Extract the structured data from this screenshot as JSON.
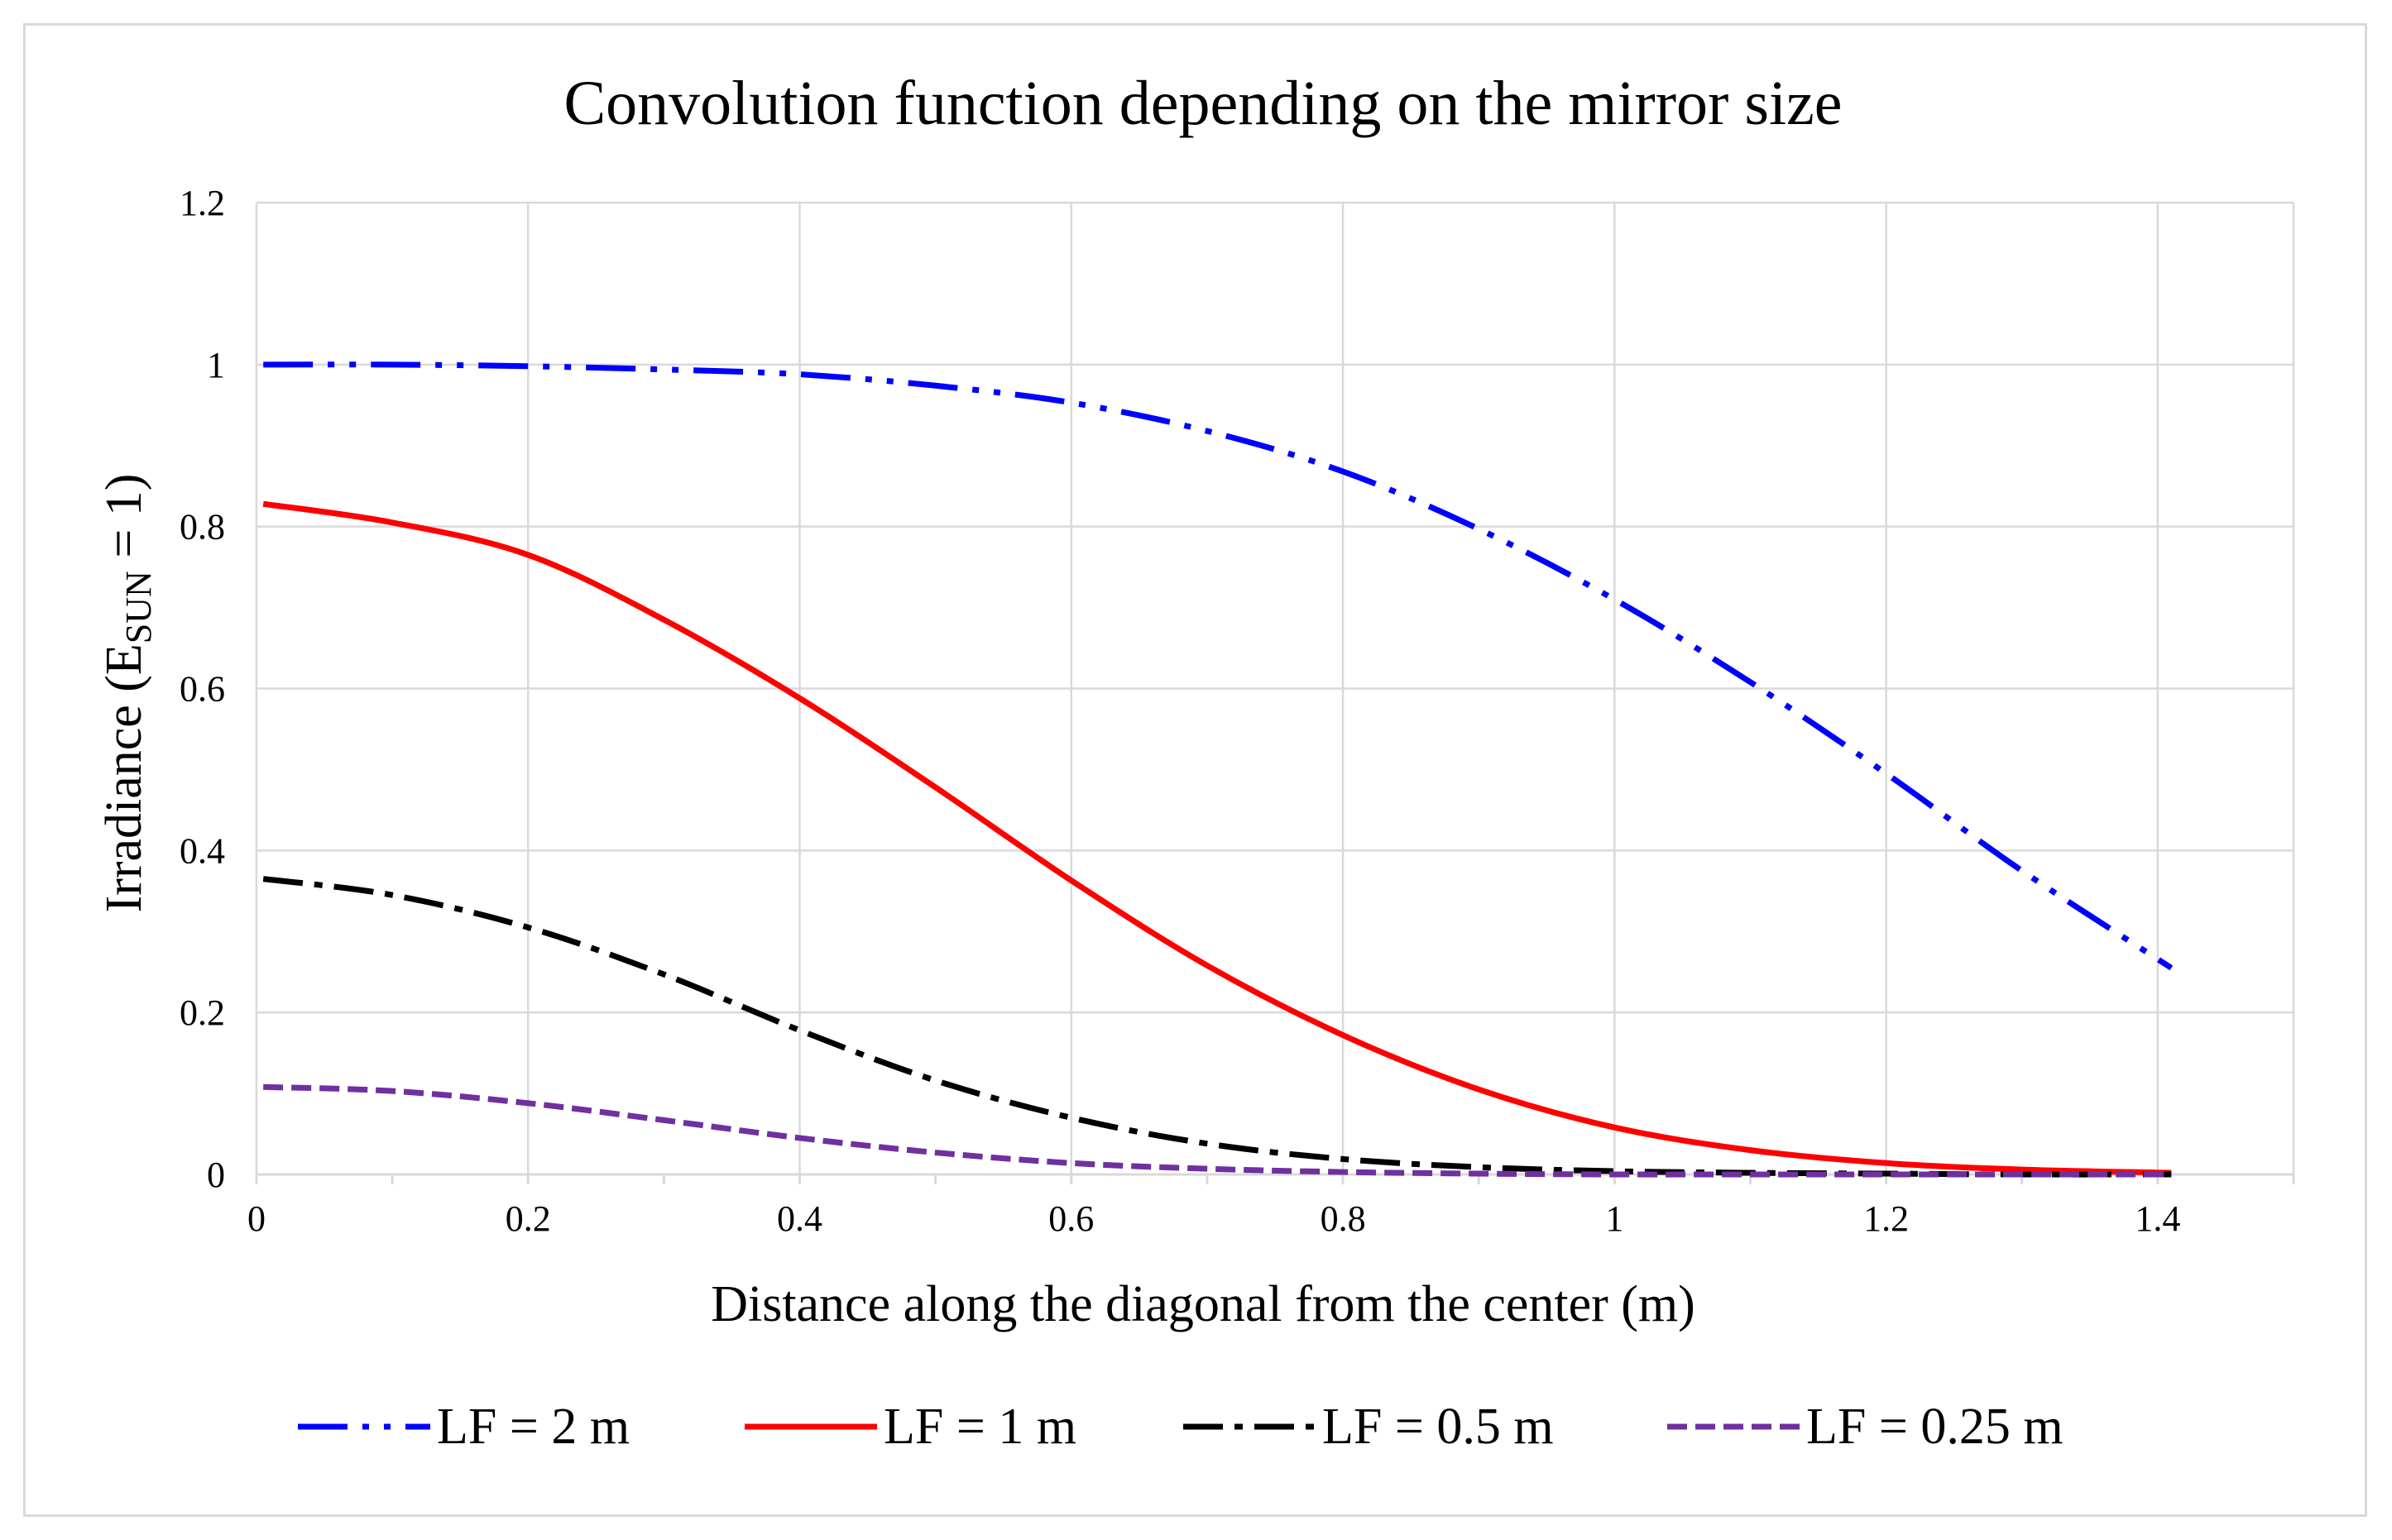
{
  "chart_data": {
    "type": "line",
    "title": "Convolution function depending on the mirror size",
    "xlabel": "Distance along the diagonal from the center (m)",
    "ylabel": {
      "main": "Irradiance (E",
      "subscript": "SUN",
      "suffix": " = 1)"
    },
    "xlim": [
      0,
      1.5
    ],
    "ylim": [
      0,
      1.2
    ],
    "x_ticks": [
      "0",
      "0.2",
      "0.4",
      "0.6",
      "0.8",
      "1",
      "1.2",
      "1.4"
    ],
    "y_ticks": [
      "0",
      "0.2",
      "0.4",
      "0.6",
      "0.8",
      "1",
      "1.2"
    ],
    "grid": true,
    "legend_position": "bottom",
    "x": [
      0.0,
      0.1,
      0.2,
      0.3,
      0.4,
      0.5,
      0.6,
      0.7,
      0.8,
      0.9,
      1.0,
      1.1,
      1.2,
      1.3,
      1.41
    ],
    "series": [
      {
        "name": "LF = 2 m",
        "color": "#0000ff",
        "dash": "dash-dot-dot",
        "values": [
          1.0,
          1.0,
          0.998,
          0.994,
          0.988,
          0.974,
          0.953,
          0.918,
          0.868,
          0.797,
          0.71,
          0.608,
          0.495,
          0.375,
          0.255
        ]
      },
      {
        "name": "LF = 1 m",
        "color": "#ff0000",
        "dash": "solid",
        "values": [
          0.828,
          0.805,
          0.765,
          0.685,
          0.588,
          0.478,
          0.363,
          0.258,
          0.172,
          0.105,
          0.058,
          0.03,
          0.014,
          0.006,
          0.002
        ]
      },
      {
        "name": "LF = 0.5 m",
        "color": "#000000",
        "dash": "dash-dot",
        "values": [
          0.365,
          0.345,
          0.305,
          0.247,
          0.178,
          0.116,
          0.07,
          0.038,
          0.019,
          0.009,
          0.004,
          0.002,
          0.001,
          0.0,
          0.0
        ]
      },
      {
        "name": "LF = 0.25 m",
        "color": "#7030a0",
        "dash": "dash",
        "values": [
          0.108,
          0.103,
          0.088,
          0.067,
          0.045,
          0.027,
          0.014,
          0.007,
          0.003,
          0.001,
          0.0,
          0.0,
          0.0,
          0.0,
          0.0
        ]
      }
    ]
  }
}
